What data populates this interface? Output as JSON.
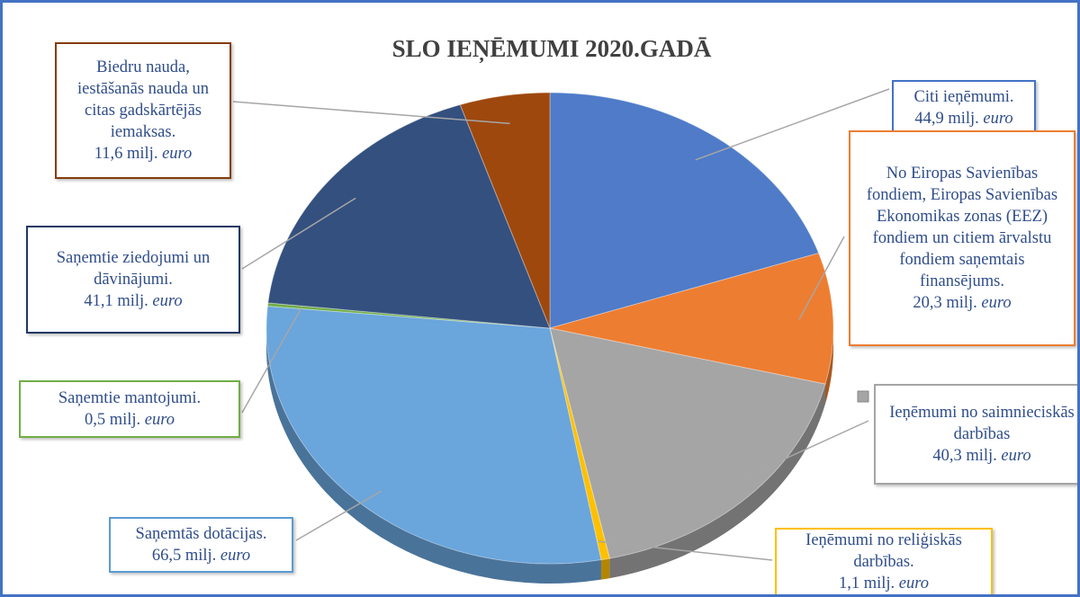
{
  "chart_data": {
    "type": "pie",
    "title": "SLO IEŅĒMUMI 2020.GADĀ",
    "categories": [
      "Citi ieņēmumi.",
      "No Eiropas Savienības fondiem, Eiropas Savienības Ekonomikas zonas (EEZ) fondiem un citiem ārvalstu fondiem saņemtais finansējums.",
      "Ieņēmumi no saimnieciskās darbības",
      "Ieņēmumi no reliģiskās darbības.",
      "Saņemtās dotācijas.",
      "Saņemtie mantojumi.",
      "Saņemtie ziedojumi un dāvinājumi.",
      "Biedru nauda, iestāšanās nauda un citas gadskārtējās iemaksas."
    ],
    "values": [
      44.9,
      20.3,
      40.3,
      1.1,
      66.5,
      0.5,
      41.1,
      11.6
    ],
    "value_labels": [
      "44,9",
      "20,3",
      "40,3",
      "1,1",
      "66,5",
      "0,5",
      "41,1",
      "11,6"
    ],
    "value_unit": "milj.",
    "currency": "euro",
    "colors": [
      "#4f7bc8",
      "#ed7d31",
      "#a5a5a5",
      "#ffc000",
      "#6aa5dc",
      "#70ad47",
      "#34507f",
      "#9e480e"
    ],
    "border_colors": [
      "#4472c4",
      "#ed7d31",
      "#a5a5a5",
      "#ffc000",
      "#5b9bd5",
      "#70ad47",
      "#203864",
      "#843c0c"
    ]
  }
}
